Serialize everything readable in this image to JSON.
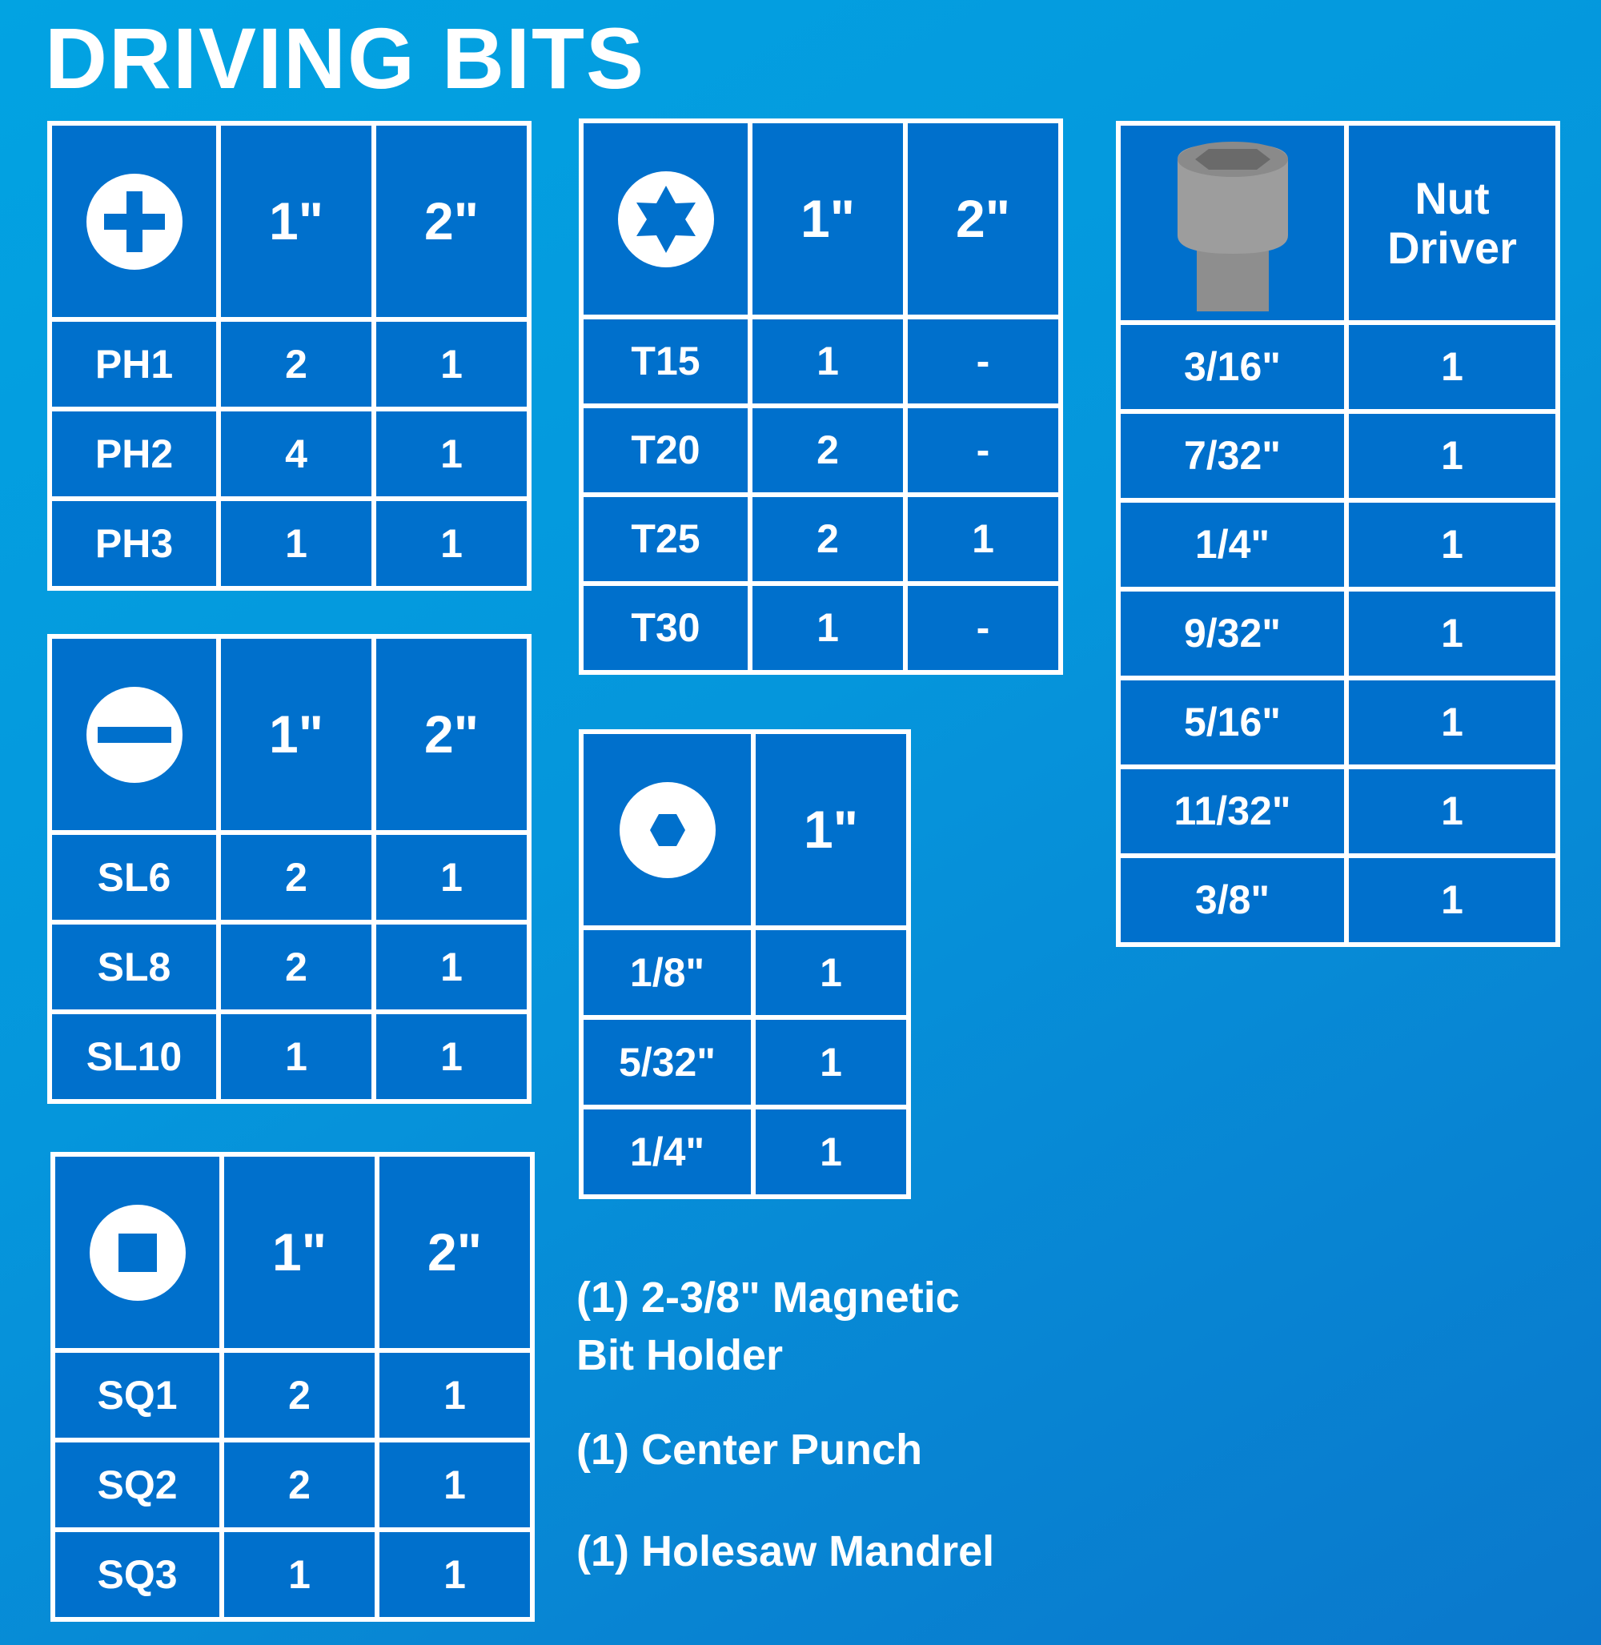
{
  "title": "DRIVING BITS",
  "colors": {
    "background": "#0596dc",
    "cell": "#0070cc",
    "border": "#ffffff",
    "socket": "#9a9a9a"
  },
  "tables": [
    {
      "id": "phillips",
      "icon": "phillips-icon",
      "headers": [
        "1\"",
        "2\""
      ],
      "rows": [
        [
          "PH1",
          "2",
          "1"
        ],
        [
          "PH2",
          "4",
          "1"
        ],
        [
          "PH3",
          "1",
          "1"
        ]
      ]
    },
    {
      "id": "slotted",
      "icon": "slotted-icon",
      "headers": [
        "1\"",
        "2\""
      ],
      "rows": [
        [
          "SL6",
          "2",
          "1"
        ],
        [
          "SL8",
          "2",
          "1"
        ],
        [
          "SL10",
          "1",
          "1"
        ]
      ]
    },
    {
      "id": "square",
      "icon": "square-icon",
      "headers": [
        "1\"",
        "2\""
      ],
      "rows": [
        [
          "SQ1",
          "2",
          "1"
        ],
        [
          "SQ2",
          "2",
          "1"
        ],
        [
          "SQ3",
          "1",
          "1"
        ]
      ]
    },
    {
      "id": "torx",
      "icon": "torx-icon",
      "headers": [
        "1\"",
        "2\""
      ],
      "rows": [
        [
          "T15",
          "1",
          "-"
        ],
        [
          "T20",
          "2",
          "-"
        ],
        [
          "T25",
          "2",
          "1"
        ],
        [
          "T30",
          "1",
          "-"
        ]
      ]
    },
    {
      "id": "hex",
      "icon": "hex-icon",
      "headers": [
        "1\""
      ],
      "rows": [
        [
          "1/8\"",
          "1"
        ],
        [
          "5/32\"",
          "1"
        ],
        [
          "1/4\"",
          "1"
        ]
      ]
    },
    {
      "id": "nut-driver",
      "icon": "socket-icon",
      "headers": [
        "Nut Driver"
      ],
      "rows": [
        [
          "3/16\"",
          "1"
        ],
        [
          "7/32\"",
          "1"
        ],
        [
          "1/4\"",
          "1"
        ],
        [
          "9/32\"",
          "1"
        ],
        [
          "5/16\"",
          "1"
        ],
        [
          "11/32\"",
          "1"
        ],
        [
          "3/8\"",
          "1"
        ]
      ]
    }
  ],
  "notes": [
    "(1) 2-3/8\" Magnetic",
    "Bit Holder",
    "(1) Center Punch",
    "(1) Holesaw Mandrel"
  ]
}
